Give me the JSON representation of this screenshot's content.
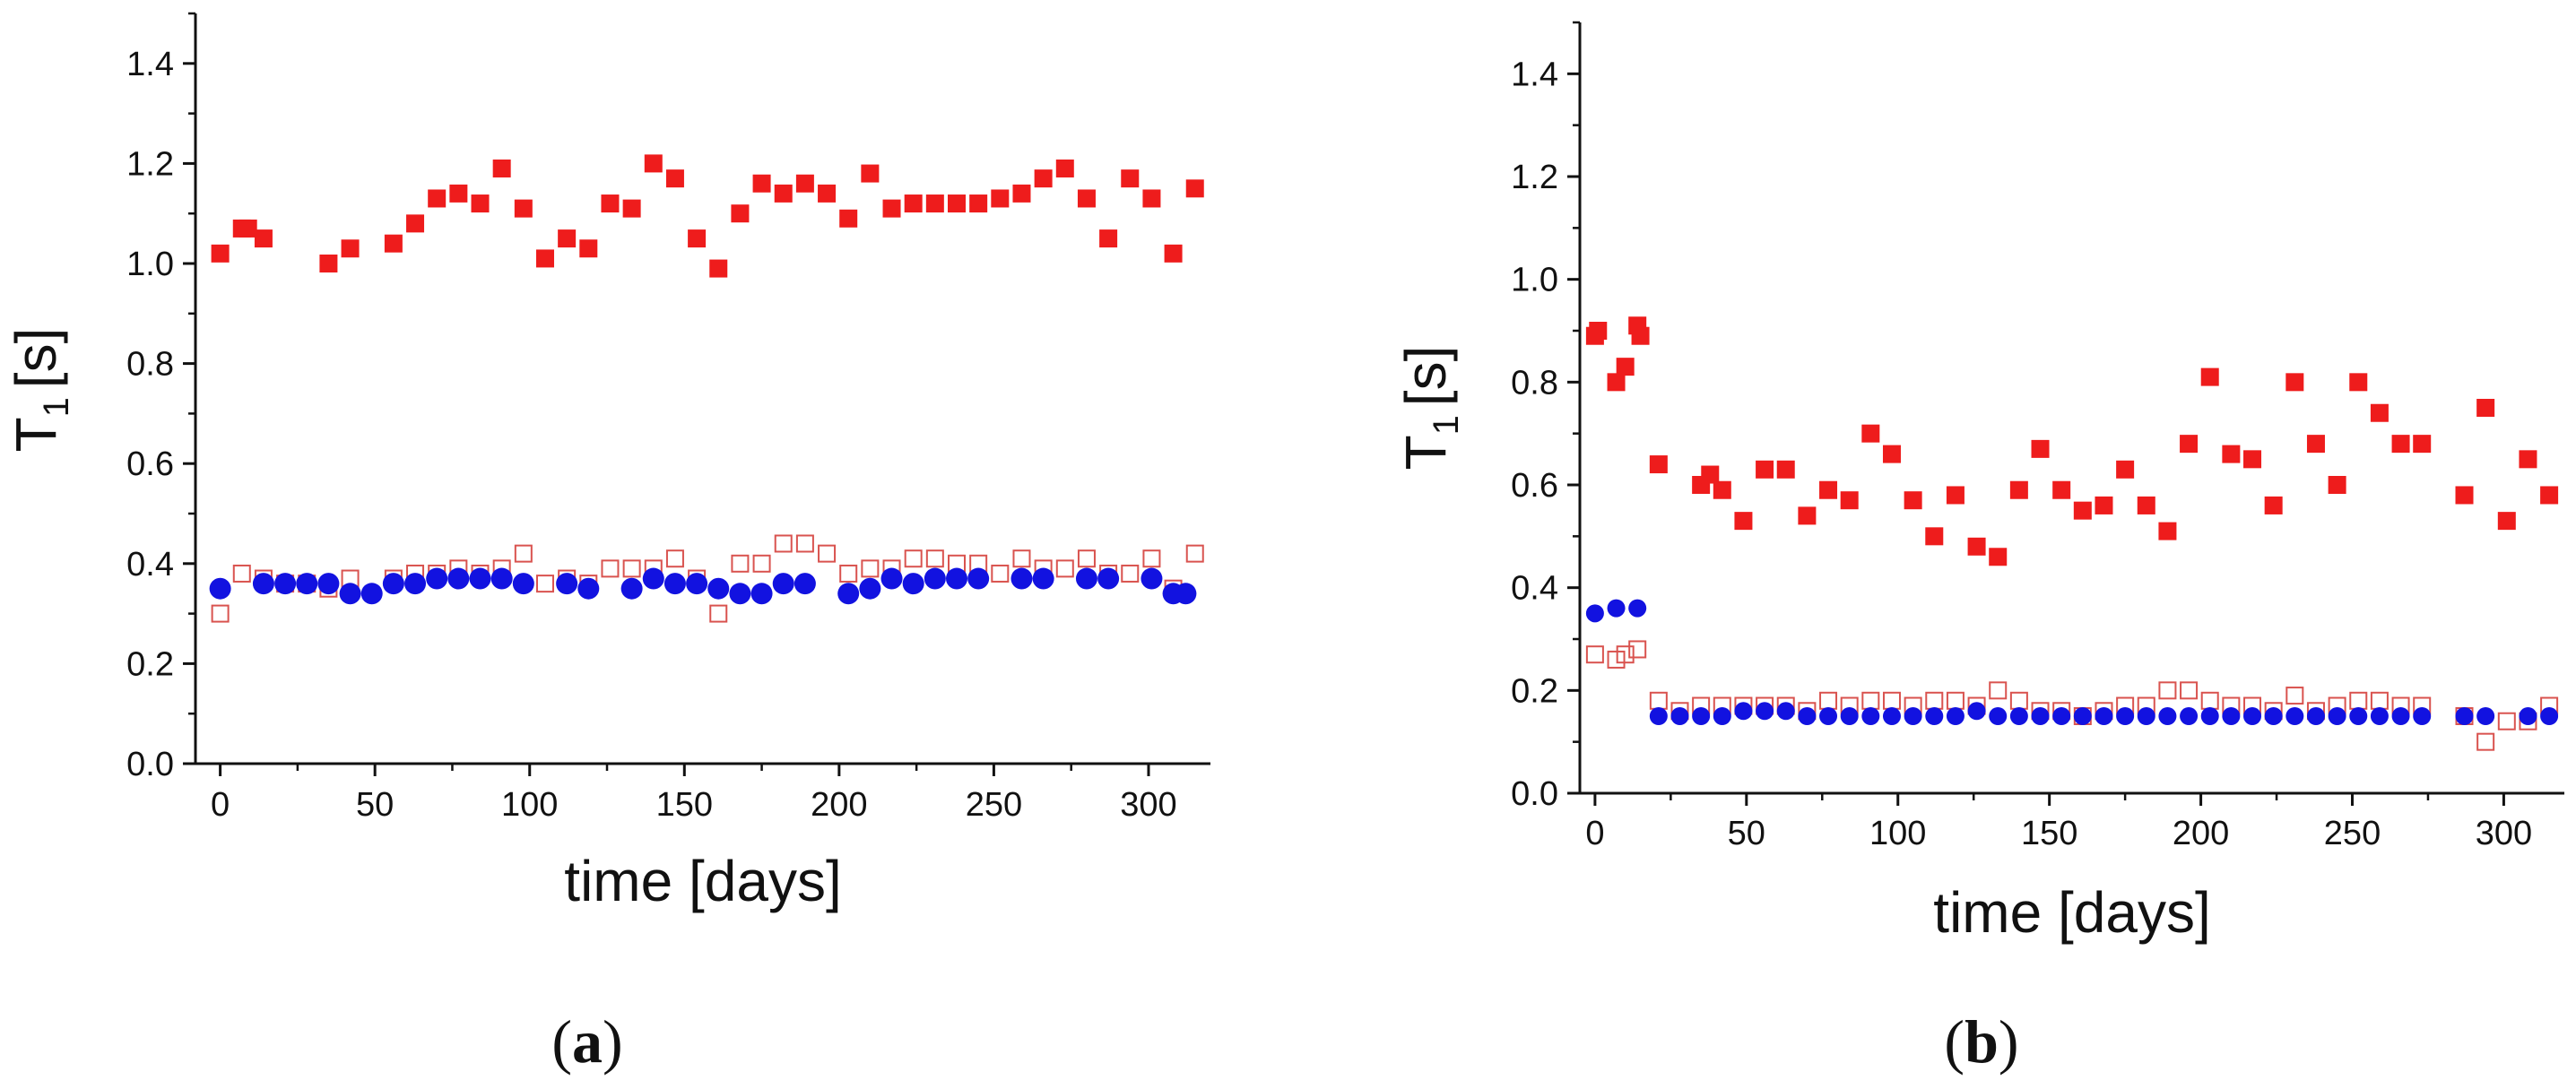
{
  "chart_data": [
    {
      "type": "scatter",
      "panel_label": "a",
      "panel_label_text": "(a)",
      "xlabel": "time [days]",
      "ylabel": "T",
      "ylabel_sub": "1",
      "ylabel_unit": "[s]",
      "xlim": [
        -8,
        320
      ],
      "ylim": [
        0,
        1.5
      ],
      "xticks": [
        0,
        50,
        100,
        150,
        200,
        250,
        300
      ],
      "yticks": [
        0.0,
        0.2,
        0.4,
        0.6,
        0.8,
        1.0,
        1.2,
        1.4
      ],
      "ytick_labels": [
        "0.0",
        "0.2",
        "0.4",
        "0.6",
        "0.8",
        "1.0",
        "1.2",
        "1.4"
      ],
      "xtick_labels": [
        "0",
        "50",
        "100",
        "150",
        "200",
        "250",
        "300"
      ],
      "series": [
        {
          "name": "filled red squares",
          "marker": "square-filled",
          "color": "#ee1c1c",
          "x": [
            0,
            7,
            9,
            14,
            35,
            42,
            56,
            63,
            70,
            77,
            84,
            91,
            98,
            105,
            112,
            119,
            126,
            133,
            140,
            147,
            154,
            161,
            168,
            175,
            182,
            189,
            196,
            203,
            210,
            217,
            224,
            231,
            238,
            245,
            252,
            259,
            266,
            273,
            280,
            287,
            294,
            301,
            308,
            315
          ],
          "y": [
            1.02,
            1.07,
            1.07,
            1.05,
            1.0,
            1.03,
            1.04,
            1.08,
            1.13,
            1.14,
            1.12,
            1.19,
            1.11,
            1.01,
            1.05,
            1.03,
            1.12,
            1.11,
            1.2,
            1.17,
            1.05,
            0.99,
            1.1,
            1.16,
            1.14,
            1.16,
            1.14,
            1.09,
            1.18,
            1.11,
            1.12,
            1.12,
            1.12,
            1.12,
            1.13,
            1.14,
            1.17,
            1.19,
            1.13,
            1.05,
            1.17,
            1.13,
            1.02,
            1.15
          ]
        },
        {
          "name": "open red squares",
          "marker": "square-open",
          "color": "#d9534f",
          "x": [
            0,
            7,
            14,
            21,
            28,
            35,
            42,
            56,
            63,
            70,
            77,
            84,
            91,
            98,
            105,
            112,
            119,
            126,
            133,
            140,
            147,
            154,
            161,
            168,
            175,
            182,
            189,
            196,
            203,
            210,
            217,
            224,
            231,
            238,
            245,
            252,
            259,
            266,
            273,
            280,
            287,
            294,
            301,
            308,
            315
          ],
          "y": [
            0.3,
            0.38,
            0.37,
            0.36,
            0.36,
            0.35,
            0.37,
            0.37,
            0.38,
            0.38,
            0.39,
            0.38,
            0.39,
            0.42,
            0.36,
            0.37,
            0.36,
            0.39,
            0.39,
            0.39,
            0.41,
            0.37,
            0.3,
            0.4,
            0.4,
            0.44,
            0.44,
            0.42,
            0.38,
            0.39,
            0.39,
            0.41,
            0.41,
            0.4,
            0.4,
            0.38,
            0.41,
            0.39,
            0.39,
            0.41,
            0.38,
            0.38,
            0.41,
            0.35,
            0.42
          ]
        },
        {
          "name": "filled blue circles",
          "marker": "circle-filled",
          "color": "#1212e0",
          "x": [
            0,
            14,
            21,
            28,
            35,
            42,
            49,
            56,
            63,
            70,
            77,
            84,
            91,
            98,
            112,
            119,
            133,
            140,
            147,
            154,
            161,
            168,
            175,
            182,
            189,
            203,
            210,
            217,
            224,
            231,
            238,
            245,
            259,
            266,
            280,
            287,
            301,
            308,
            312
          ],
          "y": [
            0.35,
            0.36,
            0.36,
            0.36,
            0.36,
            0.34,
            0.34,
            0.36,
            0.36,
            0.37,
            0.37,
            0.37,
            0.37,
            0.36,
            0.36,
            0.35,
            0.35,
            0.37,
            0.36,
            0.36,
            0.35,
            0.34,
            0.34,
            0.36,
            0.36,
            0.34,
            0.35,
            0.37,
            0.36,
            0.37,
            0.37,
            0.37,
            0.37,
            0.37,
            0.37,
            0.37,
            0.37,
            0.34,
            0.34
          ]
        }
      ]
    },
    {
      "type": "scatter",
      "panel_label": "b",
      "panel_label_text": "(b)",
      "xlabel": "time [days]",
      "ylabel": "T",
      "ylabel_sub": "1",
      "ylabel_unit": "[s]",
      "xlim": [
        -5,
        320
      ],
      "ylim": [
        0,
        1.5
      ],
      "xticks": [
        0,
        50,
        100,
        150,
        200,
        250,
        300
      ],
      "yticks": [
        0.0,
        0.2,
        0.4,
        0.6,
        0.8,
        1.0,
        1.2,
        1.4
      ],
      "ytick_labels": [
        "0.0",
        "0.2",
        "0.4",
        "0.6",
        "0.8",
        "1.0",
        "1.2",
        "1.4"
      ],
      "xtick_labels": [
        "0",
        "50",
        "100",
        "150",
        "200",
        "250",
        "300"
      ],
      "series": [
        {
          "name": "filled red squares",
          "marker": "square-filled",
          "color": "#ee1c1c",
          "x": [
            0,
            1,
            7,
            10,
            14,
            15,
            21,
            35,
            38,
            42,
            49,
            56,
            63,
            70,
            77,
            84,
            91,
            98,
            105,
            112,
            119,
            126,
            133,
            140,
            147,
            154,
            161,
            168,
            175,
            182,
            189,
            196,
            203,
            210,
            217,
            224,
            231,
            238,
            245,
            252,
            259,
            266,
            273,
            287,
            294,
            301,
            308,
            315
          ],
          "y": [
            0.89,
            0.9,
            0.8,
            0.83,
            0.91,
            0.89,
            0.64,
            0.6,
            0.62,
            0.59,
            0.53,
            0.63,
            0.63,
            0.54,
            0.59,
            0.57,
            0.7,
            0.66,
            0.57,
            0.5,
            0.58,
            0.48,
            0.46,
            0.59,
            0.67,
            0.59,
            0.55,
            0.56,
            0.63,
            0.56,
            0.51,
            0.68,
            0.81,
            0.66,
            0.65,
            0.56,
            0.8,
            0.68,
            0.6,
            0.8,
            0.74,
            0.68,
            0.68,
            0.58,
            0.75,
            0.53,
            0.65,
            0.58
          ]
        },
        {
          "name": "open red squares",
          "marker": "square-open",
          "color": "#d9534f",
          "x": [
            0,
            7,
            10,
            14,
            21,
            28,
            35,
            42,
            49,
            56,
            63,
            70,
            77,
            84,
            91,
            98,
            105,
            112,
            119,
            126,
            133,
            140,
            147,
            154,
            161,
            168,
            175,
            182,
            189,
            196,
            203,
            210,
            217,
            224,
            231,
            238,
            245,
            252,
            259,
            266,
            273,
            287,
            294,
            301,
            308,
            315
          ],
          "y": [
            0.27,
            0.26,
            0.27,
            0.28,
            0.18,
            0.16,
            0.17,
            0.17,
            0.17,
            0.17,
            0.17,
            0.16,
            0.18,
            0.17,
            0.18,
            0.18,
            0.17,
            0.18,
            0.18,
            0.17,
            0.2,
            0.18,
            0.16,
            0.16,
            0.15,
            0.16,
            0.17,
            0.17,
            0.2,
            0.2,
            0.18,
            0.17,
            0.17,
            0.16,
            0.19,
            0.16,
            0.17,
            0.18,
            0.18,
            0.17,
            0.17,
            0.15,
            0.1,
            0.14,
            0.14,
            0.17
          ]
        },
        {
          "name": "filled blue circles",
          "marker": "circle-filled",
          "color": "#1212e0",
          "x": [
            0,
            7,
            14,
            21,
            28,
            35,
            42,
            49,
            56,
            63,
            70,
            77,
            84,
            91,
            98,
            105,
            112,
            119,
            126,
            133,
            140,
            147,
            154,
            161,
            168,
            175,
            182,
            189,
            196,
            203,
            210,
            217,
            224,
            231,
            238,
            245,
            252,
            259,
            266,
            273,
            287,
            294,
            308,
            315
          ],
          "y": [
            0.35,
            0.36,
            0.36,
            0.15,
            0.15,
            0.15,
            0.15,
            0.16,
            0.16,
            0.16,
            0.15,
            0.15,
            0.15,
            0.15,
            0.15,
            0.15,
            0.15,
            0.15,
            0.16,
            0.15,
            0.15,
            0.15,
            0.15,
            0.15,
            0.15,
            0.15,
            0.15,
            0.15,
            0.15,
            0.15,
            0.15,
            0.15,
            0.15,
            0.15,
            0.15,
            0.15,
            0.15,
            0.15,
            0.15,
            0.15,
            0.15,
            0.15,
            0.15,
            0.15
          ]
        }
      ]
    }
  ]
}
